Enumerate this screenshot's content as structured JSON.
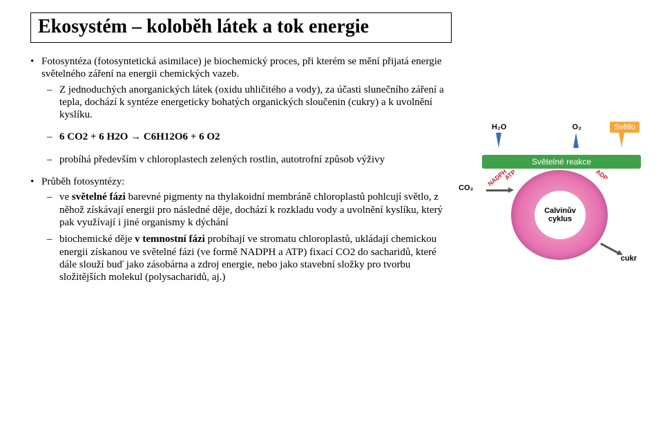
{
  "title": "Ekosystém – koloběh látek a tok energie",
  "bullets": {
    "b1": "Fotosyntéza (fotosyntetická asimilace) je biochemický proces, při kterém se mění přijatá energie světelného záření na energii chemických vazeb.",
    "b1a": "Z jednoduchých anorganických látek (oxidu uhličitého a vody), za účasti slunečního záření  a tepla, dochází k syntéze energeticky bohatých organických sloučenin (cukry) a k uvolnění kyslíku.",
    "eq": "6 CO2 + 6 H2O → C6H12O6 + 6 O2",
    "b1c": "probíhá především v chloroplastech zelených rostlin, autotrofní způsob výživy",
    "b2": "Průběh fotosyntézy:",
    "b2a_pre": "ve ",
    "b2a_bold": "světelné fázi",
    "b2a_post": " barevné pigmenty na thylakoidní membráně chloroplastů pohlcují světlo, z něhož získávají energii pro následné děje, dochází k rozkladu vody a uvolnění kyslíku, který pak využívají i jiné organismy k dýchání",
    "b2b_pre": "biochemické děje ",
    "b2b_bold": "v temnostní fázi",
    "b2b_post": " probíhají ve stromatu chloroplastů, ukládají chemickou energii získanou ve světelné fázi (ve formě NADPH a ATP) fixací CO2 do sacharidů, které dále slouží buď jako zásobárna a zdroj energie, nebo jako stavební složky pro tvorbu složitějších molekul (polysacharidů, aj.)"
  },
  "diagram": {
    "svetlo": "Světlo",
    "h2o": "H₂O",
    "o2": "O₂",
    "svetelneReakce": "Světelné reakce",
    "co2": "CO₂",
    "calvinuv": "Calvinův cyklus",
    "cukr": "cukr",
    "atp": "ATP",
    "adp": "ADP",
    "nadph": "NADPH",
    "colors": {
      "orange": "#f7a63a",
      "green": "#3fa24a",
      "pink": "#e874b0",
      "blue": "#3a6fb0",
      "red": "#d02030"
    }
  }
}
